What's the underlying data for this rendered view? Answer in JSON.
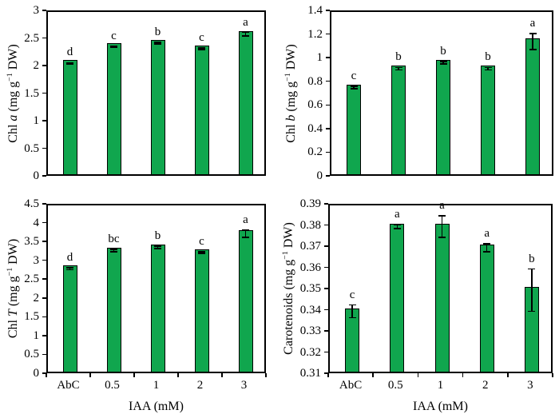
{
  "figure": {
    "background": "#ffffff",
    "bar_fill": "#10a64e",
    "bar_border": "#000000",
    "axis_color": "#000000",
    "error_color": "#000000"
  },
  "chart_data": [
    {
      "type": "bar",
      "id": "chl-a",
      "position": "top-left",
      "ylabel_segments": [
        {
          "text": "Chl "
        },
        {
          "text": "a",
          "italic": true
        },
        {
          "text": " (mg g"
        },
        {
          "text": "−1",
          "sup": true
        },
        {
          "text": " DW)"
        }
      ],
      "xlabel": "",
      "ylim": [
        0,
        3
      ],
      "yticks": [
        "0",
        "0.5",
        "1",
        "1.5",
        "2",
        "2.5",
        "3"
      ],
      "categories": [
        "AbC",
        "0.5",
        "1",
        "2",
        "3"
      ],
      "values": [
        2.07,
        2.37,
        2.43,
        2.33,
        2.6
      ],
      "errors": [
        0.01,
        0.01,
        0.015,
        0.015,
        0.03
      ],
      "letters": [
        "d",
        "c",
        "b",
        "c",
        "a"
      ],
      "show_x_labels": false,
      "grid": false,
      "legend": "none"
    },
    {
      "type": "bar",
      "id": "chl-b",
      "position": "top-right",
      "ylabel_segments": [
        {
          "text": "Chl "
        },
        {
          "text": "b",
          "italic": true
        },
        {
          "text": " (mg g"
        },
        {
          "text": "−1",
          "sup": true
        },
        {
          "text": " DW)"
        }
      ],
      "xlabel": "",
      "ylim": [
        0,
        1.4
      ],
      "yticks": [
        "0",
        "0.2",
        "0.4",
        "0.6",
        "0.8",
        "1",
        "1.2",
        "1.4"
      ],
      "categories": [
        "AbC",
        "0.5",
        "1",
        "2",
        "3"
      ],
      "values": [
        0.76,
        0.92,
        0.97,
        0.92,
        1.15
      ],
      "errors": [
        0.01,
        0.01,
        0.01,
        0.01,
        0.07
      ],
      "letters": [
        "c",
        "b",
        "b",
        "b",
        "a"
      ],
      "show_x_labels": false,
      "grid": false,
      "legend": "none"
    },
    {
      "type": "bar",
      "id": "chl-t",
      "position": "bottom-left",
      "ylabel_segments": [
        {
          "text": "Chl "
        },
        {
          "text": "T",
          "italic": true
        },
        {
          "text": " (mg g"
        },
        {
          "text": "−1",
          "sup": true
        },
        {
          "text": " DW)"
        }
      ],
      "xlabel": "IAA (mM)",
      "ylim": [
        0,
        4.5
      ],
      "yticks": [
        "0",
        "0.5",
        "1",
        "1.5",
        "2",
        "2.5",
        "3",
        "3.5",
        "4",
        "4.5"
      ],
      "categories": [
        "AbC",
        "0.5",
        "1",
        "2",
        "3"
      ],
      "values": [
        2.82,
        3.3,
        3.38,
        3.25,
        3.75
      ],
      "errors": [
        0.03,
        0.03,
        0.03,
        0.02,
        0.1
      ],
      "letters": [
        "d",
        "bc",
        "b",
        "c",
        "a"
      ],
      "show_x_labels": true,
      "grid": false,
      "legend": "none"
    },
    {
      "type": "bar",
      "id": "carotenoids",
      "position": "bottom-right",
      "ylabel_segments": [
        {
          "text": "Carotenoids (mg g"
        },
        {
          "text": "−1",
          "sup": true
        },
        {
          "text": " DW)"
        }
      ],
      "xlabel": "IAA (mM)",
      "ylim": [
        0.31,
        0.39
      ],
      "yticks": [
        "0.31",
        "0.32",
        "0.33",
        "0.34",
        "0.35",
        "0.36",
        "0.37",
        "0.38",
        "0.39"
      ],
      "categories": [
        "AbC",
        "0.5",
        "1",
        "2",
        "3"
      ],
      "values": [
        0.34,
        0.38,
        0.38,
        0.37,
        0.35
      ],
      "errors": [
        0.003,
        0.001,
        0.005,
        0.002,
        0.01
      ],
      "letters": [
        "c",
        "a",
        "a",
        "a",
        "b"
      ],
      "show_x_labels": true,
      "grid": false,
      "legend": "none"
    }
  ]
}
